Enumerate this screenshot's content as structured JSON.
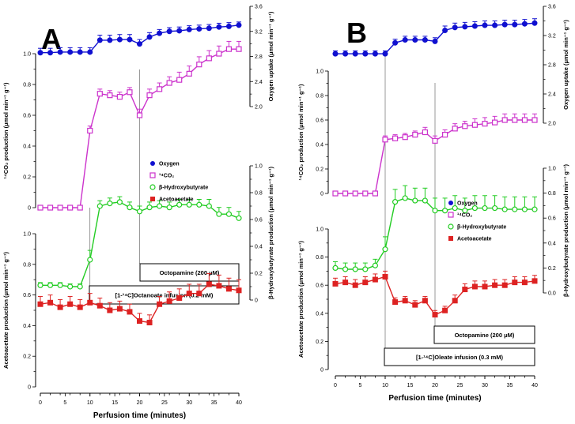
{
  "chart_data": [
    {
      "panel": "A",
      "type": "line",
      "x": [
        0,
        2,
        4,
        6,
        8,
        10,
        12,
        14,
        16,
        18,
        20,
        22,
        24,
        26,
        28,
        30,
        32,
        34,
        36,
        38,
        40
      ],
      "xlabel": "Perfusion time (minutes)",
      "xticks": [
        "0",
        "5",
        "10",
        "15",
        "20",
        "25",
        "30",
        "35",
        "40"
      ],
      "xlim": [
        0,
        40
      ],
      "series": [
        {
          "name": "Oxygen",
          "axis": "right_top",
          "color": "#1010d0",
          "marker": "filled-circle",
          "values": [
            2.86,
            2.86,
            2.87,
            2.87,
            2.87,
            2.87,
            3.06,
            3.06,
            3.07,
            3.07,
            3.0,
            3.11,
            3.17,
            3.2,
            3.21,
            3.23,
            3.24,
            3.25,
            3.27,
            3.28,
            3.3
          ],
          "errors": [
            0.07,
            0.07,
            0.07,
            0.07,
            0.07,
            0.07,
            0.08,
            0.08,
            0.08,
            0.08,
            0.07,
            0.07,
            0.06,
            0.06,
            0.06,
            0.06,
            0.06,
            0.06,
            0.06,
            0.06,
            0.05
          ]
        },
        {
          "name": "14CO2",
          "axis": "left_top",
          "color": "#cc33cc",
          "marker": "open-square",
          "values": [
            0,
            0,
            0,
            0,
            0,
            0.5,
            0.74,
            0.73,
            0.72,
            0.75,
            0.6,
            0.73,
            0.77,
            0.81,
            0.83,
            0.87,
            0.93,
            0.97,
            1.0,
            1.03,
            1.03
          ],
          "errors": [
            0,
            0,
            0,
            0,
            0,
            0.03,
            0.03,
            0.03,
            0.03,
            0.03,
            0.04,
            0.04,
            0.04,
            0.04,
            0.05,
            0.05,
            0.05,
            0.05,
            0.05,
            0.05,
            0.05
          ]
        },
        {
          "name": "β-Hydroxybutyrate",
          "axis": "right_mid",
          "color": "#22cc22",
          "marker": "open-circle",
          "values": [
            0.11,
            0.11,
            0.11,
            0.1,
            0.1,
            0.3,
            0.7,
            0.72,
            0.73,
            0.69,
            0.66,
            0.69,
            0.7,
            0.69,
            0.71,
            0.71,
            0.71,
            0.7,
            0.64,
            0.64,
            0.61
          ],
          "errors": [
            0.02,
            0.02,
            0.02,
            0.02,
            0.02,
            0.07,
            0.04,
            0.04,
            0.04,
            0.04,
            0.04,
            0.04,
            0.04,
            0.04,
            0.04,
            0.04,
            0.04,
            0.05,
            0.05,
            0.05,
            0.05
          ]
        },
        {
          "name": "Acetoacetate",
          "axis": "left_bottom",
          "color": "#dd2222",
          "marker": "filled-square",
          "values": [
            0.54,
            0.55,
            0.52,
            0.54,
            0.52,
            0.55,
            0.53,
            0.5,
            0.51,
            0.49,
            0.43,
            0.42,
            0.54,
            0.56,
            0.58,
            0.61,
            0.61,
            0.67,
            0.66,
            0.64,
            0.63
          ],
          "errors": [
            0.05,
            0.05,
            0.05,
            0.05,
            0.05,
            0.06,
            0.05,
            0.05,
            0.05,
            0.05,
            0.05,
            0.05,
            0.05,
            0.06,
            0.06,
            0.06,
            0.06,
            0.07,
            0.07,
            0.07,
            0.07
          ]
        }
      ],
      "axes": {
        "right_top": {
          "label": "Oxygen uptake (μmol min⁻¹ g⁻¹)",
          "range": [
            2.0,
            3.6
          ],
          "ticks": [
            "2.0",
            "2.4",
            "2.8",
            "3.2",
            "3.6"
          ]
        },
        "left_top": {
          "label": "¹⁴CO₂ production (μmol min⁻¹ g⁻¹)",
          "range": [
            0,
            1.0
          ],
          "ticks": [
            "0",
            "0.2",
            "0.4",
            "0.6",
            "0.8",
            "1.0"
          ]
        },
        "right_mid": {
          "label": "β-Hydroxybutyrate production (μmol min⁻¹ g⁻¹)",
          "range": [
            0,
            1.0
          ],
          "ticks": [
            "0",
            "0.2",
            "0.4",
            "0.6",
            "0.8",
            "1.0"
          ]
        },
        "left_bottom": {
          "label": "Acetoacetate production (μmol min⁻¹ g⁻¹)",
          "range": [
            0,
            1.0
          ],
          "ticks": [
            "0",
            "0.2",
            "0.4",
            "0.6",
            "0.8",
            "1.0"
          ]
        }
      },
      "annotations": {
        "octopamine": "Octopamine (200 μM)",
        "infusion": "[1-¹⁴C]Octanoate infusion (0.2 mM)"
      },
      "legend": [
        "Oxygen",
        "¹⁴CO₂",
        "β-Hydroxybutyrate",
        "Acetoacetate"
      ]
    },
    {
      "panel": "B",
      "type": "line",
      "x": [
        0,
        2,
        4,
        6,
        8,
        10,
        12,
        14,
        16,
        18,
        20,
        22,
        24,
        26,
        28,
        30,
        32,
        34,
        36,
        38,
        40
      ],
      "xlabel": "Perfusion time (minutes)",
      "xticks": [
        "0",
        "5",
        "10",
        "15",
        "20",
        "25",
        "30",
        "35",
        "40"
      ],
      "xlim": [
        0,
        40
      ],
      "series": [
        {
          "name": "Oxygen",
          "axis": "right_top",
          "color": "#1010d0",
          "marker": "filled-circle",
          "values": [
            2.95,
            2.95,
            2.95,
            2.95,
            2.95,
            2.95,
            3.1,
            3.14,
            3.14,
            3.14,
            3.12,
            3.27,
            3.31,
            3.32,
            3.33,
            3.34,
            3.34,
            3.35,
            3.35,
            3.36,
            3.37
          ],
          "errors": [
            0.04,
            0.04,
            0.04,
            0.04,
            0.04,
            0.04,
            0.05,
            0.05,
            0.05,
            0.05,
            0.05,
            0.06,
            0.06,
            0.06,
            0.06,
            0.06,
            0.06,
            0.06,
            0.06,
            0.06,
            0.06
          ]
        },
        {
          "name": "14CO2",
          "axis": "left_top",
          "color": "#cc33cc",
          "marker": "open-square",
          "values": [
            0,
            0,
            0,
            0,
            0,
            0.44,
            0.45,
            0.46,
            0.48,
            0.5,
            0.43,
            0.48,
            0.53,
            0.55,
            0.56,
            0.57,
            0.58,
            0.6,
            0.6,
            0.6,
            0.6
          ],
          "errors": [
            0,
            0,
            0,
            0,
            0,
            0.03,
            0.03,
            0.03,
            0.03,
            0.04,
            0.04,
            0.04,
            0.04,
            0.04,
            0.05,
            0.05,
            0.05,
            0.05,
            0.05,
            0.05,
            0.05
          ]
        },
        {
          "name": "β-Hydroxybutyrate",
          "axis": "right_mid",
          "color": "#22cc22",
          "marker": "open-circle",
          "values": [
            0.2,
            0.19,
            0.19,
            0.19,
            0.22,
            0.35,
            0.73,
            0.76,
            0.74,
            0.74,
            0.66,
            0.66,
            0.68,
            0.66,
            0.68,
            0.68,
            0.68,
            0.67,
            0.67,
            0.67,
            0.67
          ],
          "errors": [
            0.05,
            0.05,
            0.05,
            0.05,
            0.05,
            0.1,
            0.1,
            0.1,
            0.1,
            0.1,
            0.1,
            0.1,
            0.1,
            0.1,
            0.1,
            0.1,
            0.1,
            0.1,
            0.1,
            0.1,
            0.1
          ]
        },
        {
          "name": "Acetoacetate",
          "axis": "left_bottom",
          "color": "#dd2222",
          "marker": "filled-square",
          "values": [
            0.61,
            0.62,
            0.6,
            0.62,
            0.64,
            0.66,
            0.48,
            0.49,
            0.46,
            0.49,
            0.39,
            0.42,
            0.49,
            0.57,
            0.59,
            0.59,
            0.6,
            0.6,
            0.62,
            0.62,
            0.63
          ],
          "errors": [
            0.04,
            0.04,
            0.04,
            0.04,
            0.04,
            0.04,
            0.03,
            0.03,
            0.03,
            0.03,
            0.03,
            0.03,
            0.04,
            0.04,
            0.04,
            0.04,
            0.04,
            0.04,
            0.04,
            0.04,
            0.04
          ]
        }
      ],
      "axes": {
        "right_top": {
          "label": "Oxygen uptake (μmol min⁻¹ g⁻¹)",
          "range": [
            2.0,
            3.6
          ],
          "ticks": [
            "2.0",
            "2.4",
            "2.8",
            "3.2",
            "3.6"
          ]
        },
        "left_top": {
          "label": "¹⁴CO₂ production (μmol min⁻¹ g⁻¹)",
          "range": [
            0,
            1.0
          ],
          "ticks": [
            "0",
            "0.2",
            "0.4",
            "0.6",
            "0.8",
            "1.0"
          ]
        },
        "right_mid": {
          "label": "β-Hydroxybutyrate production (μmol min⁻¹ g⁻¹)",
          "range": [
            0,
            1.0
          ],
          "ticks": [
            "0.0",
            "0.2",
            "0.4",
            "0.6",
            "0.8",
            "1.0"
          ]
        },
        "left_bottom": {
          "label": "Acetoacetate production (μmol min⁻¹ g⁻¹)",
          "range": [
            0,
            1.0
          ],
          "ticks": [
            "0",
            "0.2",
            "0.4",
            "0.6",
            "0.8",
            "1.0"
          ]
        }
      },
      "annotations": {
        "octopamine": "Octopamine (200 μM)",
        "infusion": "[1-¹⁴C]Oleate infusion (0.3 mM)"
      },
      "legend": [
        "Oxygen",
        "¹⁴CO₂",
        "β-Hydroxybutyrate",
        "Acetoacetate"
      ]
    }
  ]
}
